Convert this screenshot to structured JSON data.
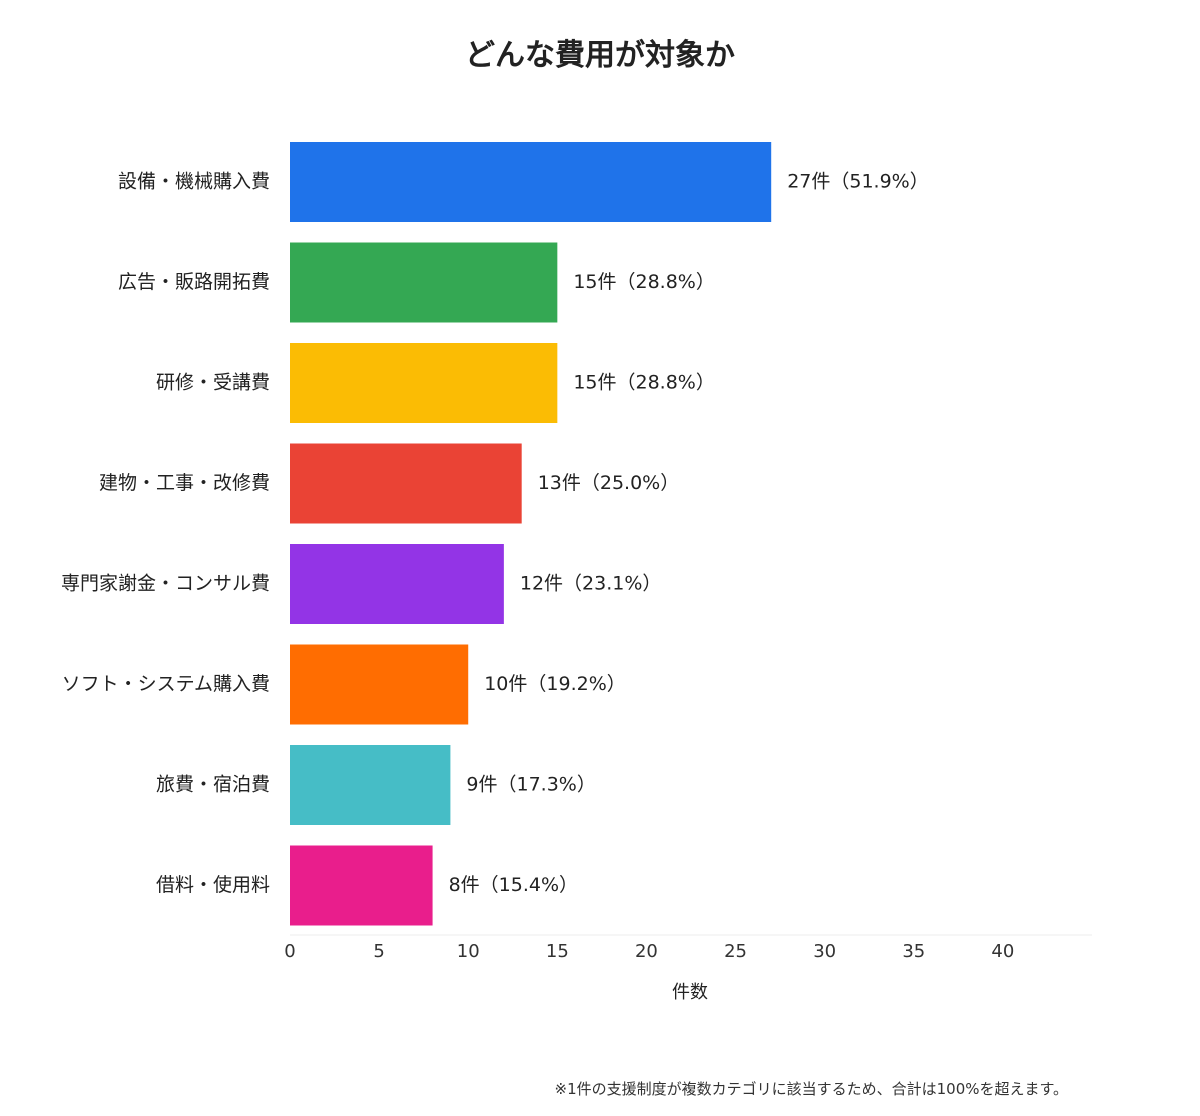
{
  "chart_data": {
    "type": "bar",
    "orientation": "horizontal",
    "title": "どんな費用が対象か",
    "xlabel": "件数",
    "ylabel": "",
    "xlim": [
      0,
      45
    ],
    "x_ticks": [
      0,
      5,
      10,
      15,
      20,
      25,
      30,
      35,
      40
    ],
    "grid": false,
    "legend": "none",
    "categories": [
      "設備・機械購入費",
      "広告・販路開拓費",
      "研修・受講費",
      "建物・工事・改修費",
      "専門家謝金・コンサル費",
      "ソフト・システム購入費",
      "旅費・宿泊費",
      "借料・使用料"
    ],
    "values": [
      27,
      15,
      15,
      13,
      12,
      10,
      9,
      8
    ],
    "data_labels": [
      "27件（51.9%）",
      "15件（28.8%）",
      "15件（28.8%）",
      "13件（25.0%）",
      "12件（23.1%）",
      "10件（19.2%）",
      "9件（17.3%）",
      "8件（15.4%）"
    ],
    "colors": [
      "#1f73ea",
      "#34a853",
      "#fbbc04",
      "#ea4335",
      "#9334e6",
      "#ff6d01",
      "#46bdc6",
      "#e91e8c"
    ]
  },
  "footnote": "※1件の支援制度が複数カテゴリに該当するため、合計は100%を超えます。"
}
